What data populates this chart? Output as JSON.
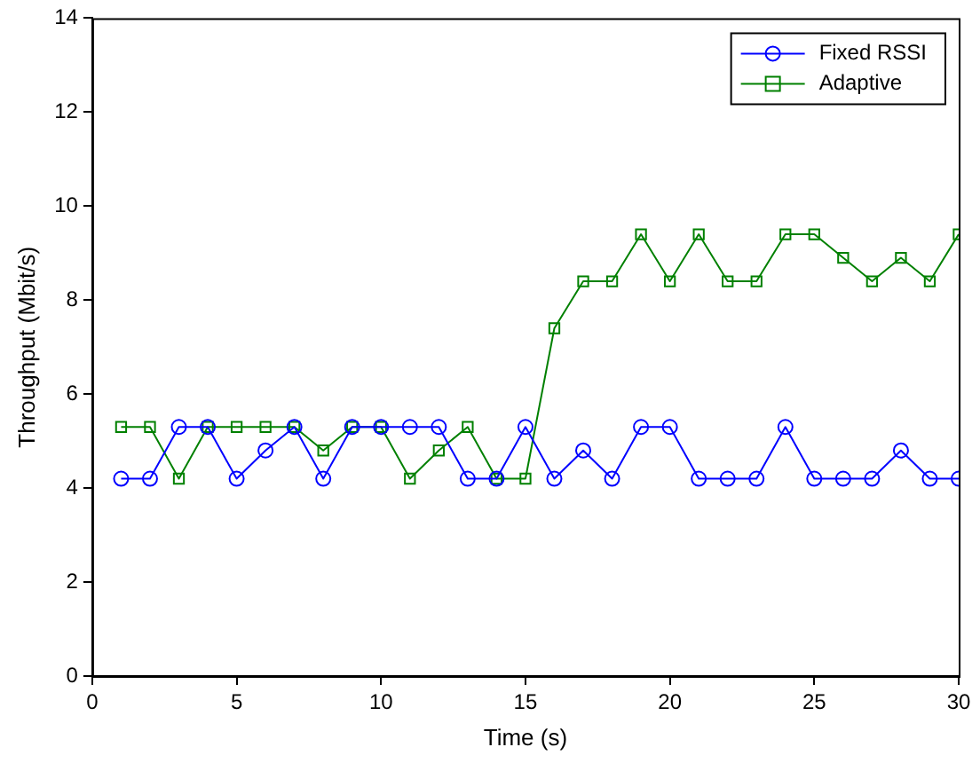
{
  "chart_data": {
    "type": "line",
    "xlabel": "Time (s)",
    "ylabel": "Throughput (Mbit/s)",
    "x": [
      1,
      2,
      3,
      4,
      5,
      6,
      7,
      8,
      9,
      10,
      11,
      12,
      13,
      14,
      15,
      16,
      17,
      18,
      19,
      20,
      21,
      22,
      23,
      24,
      25,
      26,
      27,
      28,
      29,
      30
    ],
    "xlim": [
      0,
      30
    ],
    "xticks": [
      0,
      5,
      10,
      15,
      20,
      25,
      30
    ],
    "ylim": [
      0,
      14
    ],
    "yticks": [
      0,
      2,
      4,
      6,
      8,
      10,
      12,
      14
    ],
    "grid": false,
    "legend": "top right",
    "line_style": "solid",
    "series": [
      {
        "name": "Fixed RSSI",
        "color": "#0000ff",
        "marker": "circle",
        "values": [
          4.2,
          4.2,
          5.3,
          5.3,
          4.2,
          4.8,
          5.3,
          4.2,
          5.3,
          5.3,
          5.3,
          5.3,
          4.2,
          4.2,
          5.3,
          4.2,
          4.8,
          4.2,
          5.3,
          5.3,
          4.2,
          4.2,
          4.2,
          5.3,
          4.2,
          4.2,
          4.2,
          4.8,
          4.2,
          4.2
        ]
      },
      {
        "name": "Adaptive",
        "color": "#008000",
        "marker": "square",
        "values": [
          5.3,
          5.3,
          4.2,
          5.3,
          5.3,
          5.3,
          5.3,
          4.8,
          5.3,
          5.3,
          4.2,
          4.8,
          5.3,
          4.2,
          4.2,
          7.4,
          8.4,
          8.4,
          9.4,
          8.4,
          9.4,
          8.4,
          8.4,
          9.4,
          9.4,
          8.9,
          8.4,
          8.9,
          8.4,
          9.4
        ]
      }
    ]
  }
}
